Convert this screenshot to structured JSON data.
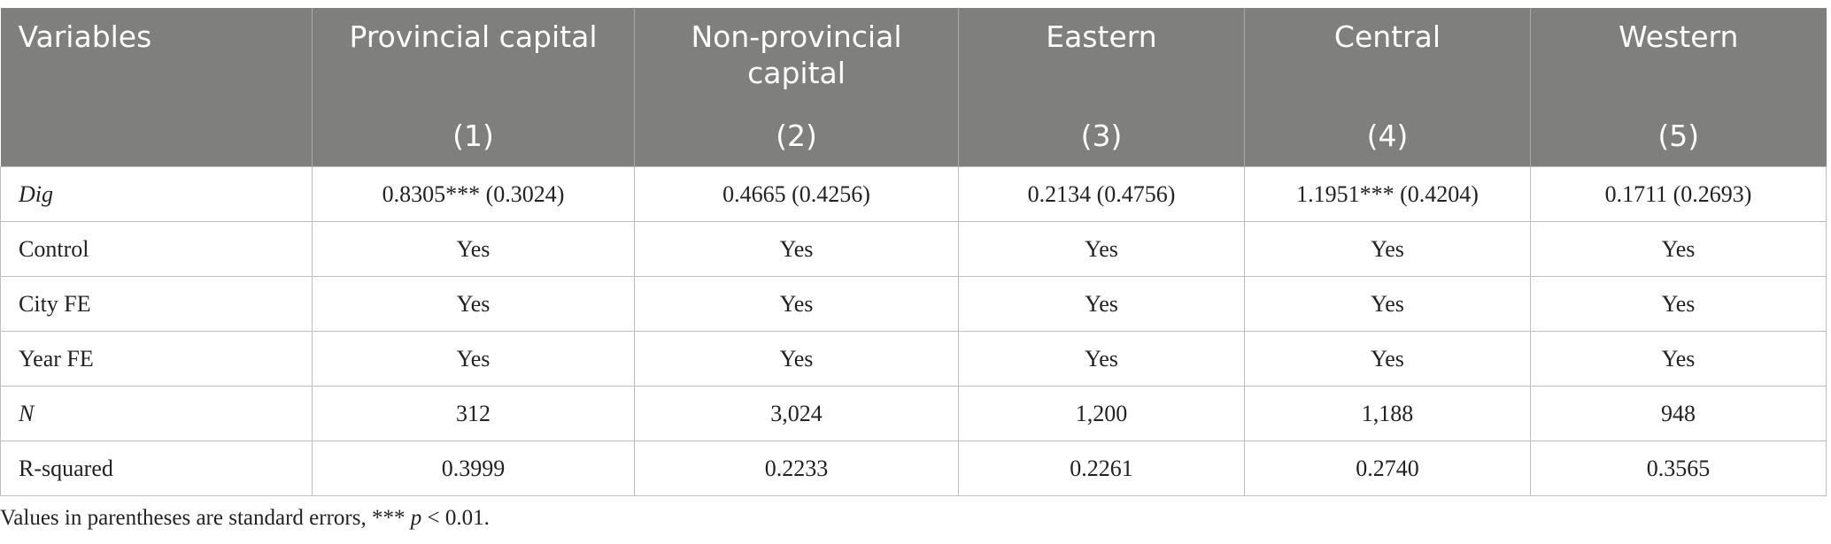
{
  "table": {
    "header": {
      "columns": [
        "Variables",
        "Provincial capital",
        "Non-provincial capital",
        "Eastern",
        "Central",
        "Western"
      ],
      "numbers": [
        "(1)",
        "(2)",
        "(3)",
        "(4)",
        "(5)"
      ]
    },
    "rows": [
      [
        "Dig",
        "0.8305*** (0.3024)",
        "0.4665 (0.4256)",
        "0.2134 (0.4756)",
        "1.1951*** (0.4204)",
        "0.1711 (0.2693)"
      ],
      [
        "Control",
        "Yes",
        "Yes",
        "Yes",
        "Yes",
        "Yes"
      ],
      [
        "City FE",
        "Yes",
        "Yes",
        "Yes",
        "Yes",
        "Yes"
      ],
      [
        "Year FE",
        "Yes",
        "Yes",
        "Yes",
        "Yes",
        "Yes"
      ],
      [
        "N",
        "312",
        "3,024",
        "1,200",
        "1,188",
        "948"
      ],
      [
        "R-squared",
        "0.3999",
        "0.2233",
        "0.2261",
        "0.2740",
        "0.3565"
      ]
    ],
    "note": [
      "Values in parentheses are standard errors, ***",
      "p",
      "< 0.01."
    ]
  }
}
